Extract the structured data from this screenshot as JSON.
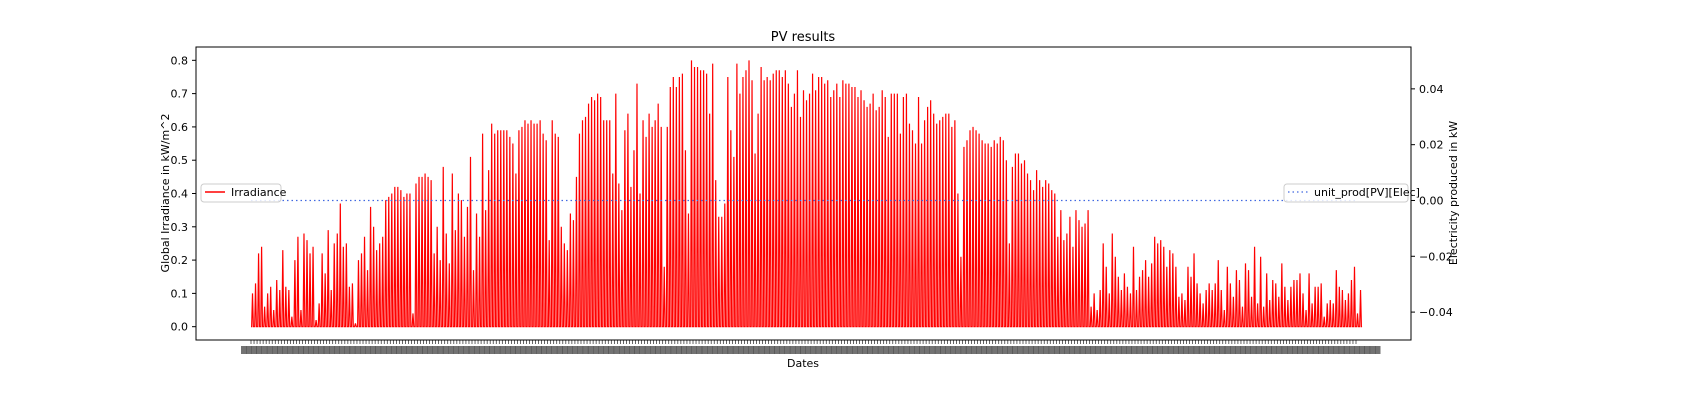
{
  "chart_data": {
    "type": "line",
    "title": "PV results",
    "xlabel": "Dates",
    "ylabel_left": "Global Irradiance in kW/m^2",
    "ylabel_right": "Electricity produced in kW",
    "ylim_left": [
      -0.04,
      0.84
    ],
    "ylim_right": [
      -0.05,
      0.055
    ],
    "yticks_left": [
      "0.0",
      "0.1",
      "0.2",
      "0.3",
      "0.4",
      "0.5",
      "0.6",
      "0.7",
      "0.8"
    ],
    "yticks_right": [
      "−0.04",
      "−0.02",
      "0.00",
      "0.02",
      "0.04"
    ],
    "x_tick_labels_note": "x-axis tick labels are densely overlapping and illegible",
    "x_domain": [
      0,
      365
    ],
    "series": [
      {
        "name": "Irradiance",
        "axis": "left",
        "color": "#ff0000",
        "style": "solid",
        "sampling": "daily peak irradiance, 365 days",
        "daily_peak_kw_per_m2": [
          0.1,
          0.13,
          0.22,
          0.24,
          0.06,
          0.1,
          0.12,
          0.05,
          0.14,
          0.11,
          0.23,
          0.12,
          0.11,
          0.03,
          0.2,
          0.27,
          0.05,
          0.28,
          0.26,
          0.22,
          0.24,
          0.02,
          0.07,
          0.22,
          0.16,
          0.29,
          0.11,
          0.25,
          0.28,
          0.37,
          0.24,
          0.25,
          0.12,
          0.13,
          0.01,
          0.2,
          0.22,
          0.27,
          0.17,
          0.36,
          0.3,
          0.23,
          0.25,
          0.27,
          0.38,
          0.39,
          0.4,
          0.42,
          0.42,
          0.41,
          0.39,
          0.4,
          0.4,
          0.04,
          0.43,
          0.45,
          0.45,
          0.46,
          0.45,
          0.44,
          0.22,
          0.3,
          0.2,
          0.48,
          0.28,
          0.19,
          0.46,
          0.29,
          0.4,
          0.38,
          0.27,
          0.36,
          0.51,
          0.17,
          0.34,
          0.27,
          0.58,
          0.35,
          0.47,
          0.61,
          0.58,
          0.59,
          0.59,
          0.59,
          0.59,
          0.57,
          0.55,
          0.46,
          0.59,
          0.6,
          0.62,
          0.61,
          0.62,
          0.61,
          0.61,
          0.62,
          0.58,
          0.56,
          0.26,
          0.62,
          0.58,
          0.57,
          0.3,
          0.25,
          0.23,
          0.34,
          0.32,
          0.45,
          0.58,
          0.62,
          0.63,
          0.67,
          0.69,
          0.68,
          0.7,
          0.69,
          0.62,
          0.62,
          0.62,
          0.46,
          0.7,
          0.43,
          0.35,
          0.59,
          0.64,
          0.42,
          0.53,
          0.73,
          0.4,
          0.62,
          0.57,
          0.64,
          0.6,
          0.62,
          0.67,
          0.6,
          0.18,
          0.6,
          0.72,
          0.75,
          0.72,
          0.75,
          0.76,
          0.53,
          0.34,
          0.8,
          0.78,
          0.78,
          0.77,
          0.77,
          0.76,
          0.64,
          0.79,
          0.44,
          0.33,
          0.33,
          0.37,
          0.75,
          0.59,
          0.51,
          0.79,
          0.7,
          0.75,
          0.77,
          0.8,
          0.74,
          0.52,
          0.64,
          0.78,
          0.74,
          0.75,
          0.74,
          0.76,
          0.77,
          0.77,
          0.75,
          0.77,
          0.73,
          0.66,
          0.7,
          0.77,
          0.63,
          0.71,
          0.68,
          0.7,
          0.76,
          0.71,
          0.75,
          0.75,
          0.73,
          0.74,
          0.69,
          0.71,
          0.73,
          0.69,
          0.74,
          0.73,
          0.73,
          0.72,
          0.72,
          0.69,
          0.71,
          0.68,
          0.66,
          0.67,
          0.7,
          0.65,
          0.66,
          0.71,
          0.69,
          0.57,
          0.7,
          0.7,
          0.7,
          0.58,
          0.69,
          0.7,
          0.61,
          0.59,
          0.55,
          0.69,
          0.55,
          0.62,
          0.66,
          0.68,
          0.64,
          0.61,
          0.62,
          0.63,
          0.64,
          0.64,
          0.6,
          0.62,
          0.4,
          0.21,
          0.54,
          0.56,
          0.59,
          0.6,
          0.59,
          0.58,
          0.56,
          0.55,
          0.55,
          0.54,
          0.56,
          0.55,
          0.57,
          0.56,
          0.5,
          0.25,
          0.48,
          0.52,
          0.52,
          0.49,
          0.5,
          0.46,
          0.44,
          0.41,
          0.47,
          0.44,
          0.42,
          0.44,
          0.43,
          0.41,
          0.4,
          0.27,
          0.35,
          0.26,
          0.28,
          0.33,
          0.24,
          0.35,
          0.32,
          0.3,
          0.31,
          0.35,
          0.06,
          0.1,
          0.05,
          0.11,
          0.25,
          0.18,
          0.1,
          0.28,
          0.21,
          0.15,
          0.11,
          0.16,
          0.12,
          0.1,
          0.24,
          0.11,
          0.15,
          0.17,
          0.2,
          0.15,
          0.19,
          0.27,
          0.25,
          0.26,
          0.24,
          0.18,
          0.23,
          0.22,
          0.18,
          0.09,
          0.1,
          0.08,
          0.18,
          0.15,
          0.22,
          0.13,
          0.1,
          0.07,
          0.11,
          0.13,
          0.11,
          0.13,
          0.2,
          0.11,
          0.05,
          0.18,
          0.13,
          0.09,
          0.17,
          0.14,
          0.06,
          0.19,
          0.17,
          0.09,
          0.24,
          0.07,
          0.21,
          0.06,
          0.16,
          0.08,
          0.14,
          0.13,
          0.09,
          0.19,
          0.12,
          0.08,
          0.12,
          0.14,
          0.14,
          0.16,
          0.1,
          0.05,
          0.16,
          0.07,
          0.12,
          0.12,
          0.13,
          0.03,
          0.07,
          0.08,
          0.07,
          0.17,
          0.12,
          0.11,
          0.08,
          0.1,
          0.14,
          0.18,
          0.04,
          0.11
        ]
      },
      {
        "name": "unit_prod[PV][Elec]",
        "axis": "right",
        "color": "#4169e1",
        "style": "dotted",
        "constant_value": 0.0
      }
    ],
    "legends": [
      {
        "label": "Irradiance",
        "placement": "center-left"
      },
      {
        "label": "unit_prod[PV][Elec]",
        "placement": "center-right"
      }
    ],
    "grid": false
  }
}
